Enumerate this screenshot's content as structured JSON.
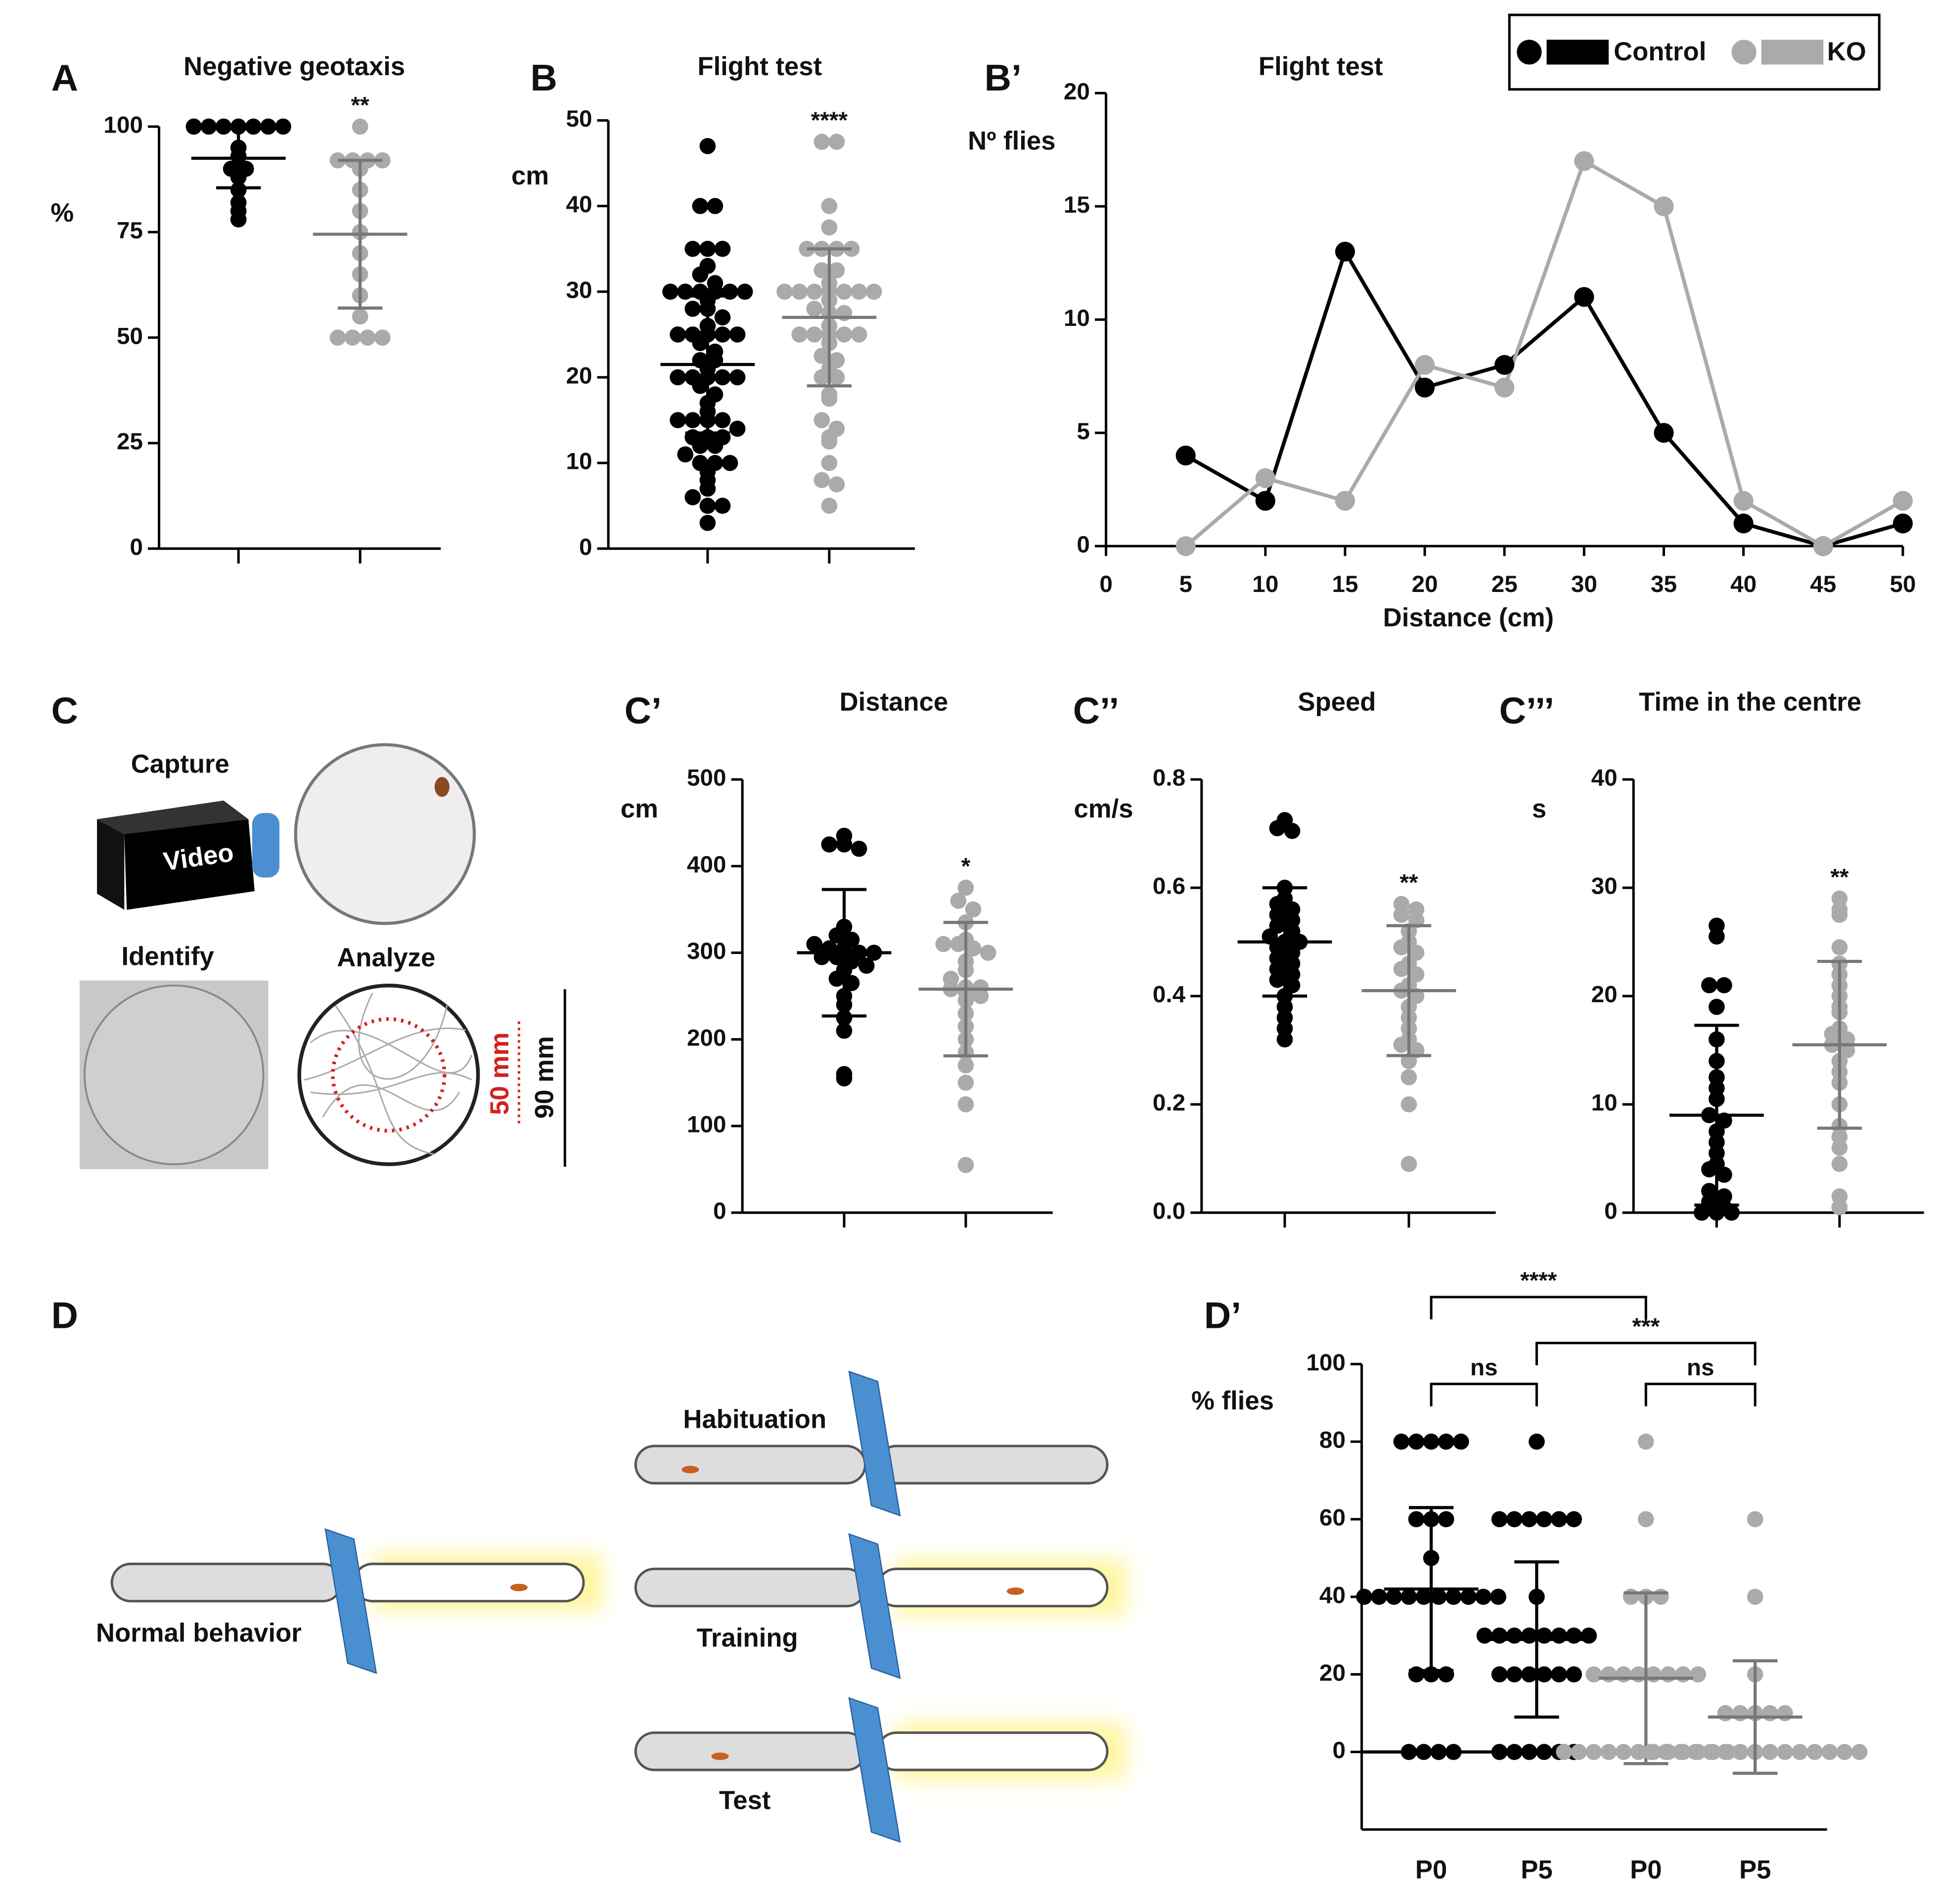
{
  "panel_labels": [
    "A",
    "B",
    "B’",
    "C",
    "C’",
    "C’’",
    "C’’’",
    "D",
    "D’"
  ],
  "diagram_c": {
    "capture": "Capture",
    "video": "Video",
    "identify": "Identify",
    "analyze": "Analyze",
    "inner": "50 mm",
    "outer": "90 mm"
  },
  "diagram_d": {
    "normal": "Normal behavior",
    "habituation": "Habituation",
    "training": "Training",
    "test": "Test"
  },
  "chart_data": [
    {
      "type": "dot",
      "title": "Negative geotaxis",
      "y_label": "%",
      "ylim": [
        0,
        100
      ],
      "yticks": [
        0,
        25,
        50,
        75,
        100
      ],
      "groups": [
        {
          "color": "#000000",
          "values": [
            100,
            100,
            100,
            100,
            100,
            100,
            100,
            95,
            93,
            90,
            90,
            88,
            85,
            82,
            80,
            78
          ],
          "mean": 92.5,
          "sd": 7
        },
        {
          "color": "#aaaaaa",
          "values": [
            100,
            92,
            92,
            92,
            92,
            90,
            85,
            80,
            75,
            70,
            65,
            60,
            55,
            50,
            50,
            50,
            50
          ],
          "mean": 74.5,
          "sd": 17.5,
          "label": "**"
        }
      ]
    },
    {
      "type": "dot",
      "title": "Flight test",
      "y_label": "cm",
      "ylim": [
        0,
        50
      ],
      "yticks": [
        0,
        10,
        20,
        30,
        40,
        50
      ],
      "groups": [
        {
          "color": "#000000",
          "values": [
            47,
            40,
            40,
            35,
            35,
            35,
            33,
            32,
            31,
            30,
            30,
            30,
            30,
            30,
            30,
            29,
            28,
            28,
            27,
            26,
            25,
            25,
            25,
            25,
            25,
            24,
            23,
            22,
            22,
            21,
            20,
            20,
            20,
            20,
            20,
            19,
            18,
            17,
            16,
            15,
            15,
            15,
            15,
            14,
            13,
            13,
            13,
            12,
            12,
            11,
            10,
            10,
            10,
            9,
            8,
            7,
            6,
            5,
            5,
            3
          ],
          "mean": 21.5,
          "sd": 8
        },
        {
          "color": "#aaaaaa",
          "values": [
            47.5,
            47.5,
            40,
            37.5,
            35,
            35,
            35,
            35,
            32.5,
            32.5,
            31,
            30,
            30,
            30,
            30,
            30,
            30,
            30,
            29,
            28,
            27.5,
            27.5,
            26,
            25,
            25,
            25,
            25,
            25,
            24,
            22.5,
            22,
            21,
            20,
            20,
            18,
            17.5,
            15,
            14,
            13,
            12.5,
            10,
            8,
            7.5,
            5
          ],
          "mean": 27,
          "sd": 8,
          "label": "****"
        }
      ]
    },
    {
      "type": "line",
      "title": "Flight test",
      "y_label": "Nº flies",
      "x_label": "Distance (cm)",
      "x": [
        5,
        10,
        15,
        20,
        25,
        30,
        35,
        40,
        45,
        50
      ],
      "xlim": [
        0,
        50
      ],
      "xticks": [
        0,
        5,
        10,
        15,
        20,
        25,
        30,
        35,
        40,
        45,
        50
      ],
      "ylim": [
        0,
        20
      ],
      "yticks": [
        0,
        5,
        10,
        15,
        20
      ],
      "legend": "upper right",
      "series": [
        {
          "name": "Control",
          "color": "#000000",
          "values": [
            4,
            2,
            13,
            7,
            8,
            11,
            5,
            1,
            0,
            1
          ]
        },
        {
          "name": "KO",
          "color": "#aaaaaa",
          "values": [
            0,
            3,
            2,
            8,
            7,
            17,
            15,
            2,
            0,
            2
          ]
        }
      ]
    },
    {
      "type": "dot",
      "title": "Distance",
      "y_label": "cm",
      "ylim": [
        0,
        500
      ],
      "yticks": [
        0,
        100,
        200,
        300,
        400,
        500
      ],
      "groups": [
        {
          "color": "#000000",
          "values": [
            435,
            425,
            425,
            420,
            330,
            320,
            315,
            310,
            305,
            305,
            300,
            300,
            295,
            295,
            290,
            285,
            280,
            270,
            265,
            250,
            240,
            225,
            210,
            160,
            155
          ],
          "mean": 300,
          "sd": 73
        },
        {
          "color": "#aaaaaa",
          "values": [
            375,
            360,
            350,
            335,
            315,
            310,
            310,
            305,
            300,
            290,
            280,
            270,
            260,
            260,
            258,
            255,
            250,
            245,
            230,
            215,
            200,
            185,
            170,
            150,
            125,
            55
          ],
          "mean": 258,
          "sd": 77,
          "label": "*"
        }
      ]
    },
    {
      "type": "dot",
      "title": "Speed",
      "y_label": "cm/s",
      "ylim": [
        0,
        0.8
      ],
      "yticks": [
        {
          "value": 0,
          "label": "0.0"
        },
        0.2,
        0.4,
        0.6,
        0.8
      ],
      "groups": [
        {
          "color": "#000000",
          "values": [
            0.725,
            0.71,
            0.705,
            0.6,
            0.58,
            0.57,
            0.56,
            0.55,
            0.54,
            0.53,
            0.52,
            0.51,
            0.5,
            0.5,
            0.49,
            0.48,
            0.47,
            0.46,
            0.45,
            0.44,
            0.43,
            0.42,
            0.4,
            0.38,
            0.36,
            0.34,
            0.32
          ],
          "mean": 0.5,
          "sd": 0.1
        },
        {
          "color": "#aaaaaa",
          "values": [
            0.57,
            0.56,
            0.55,
            0.54,
            0.52,
            0.5,
            0.49,
            0.48,
            0.46,
            0.45,
            0.44,
            0.42,
            0.41,
            0.4,
            0.38,
            0.36,
            0.34,
            0.32,
            0.31,
            0.3,
            0.28,
            0.25,
            0.2,
            0.09
          ],
          "mean": 0.41,
          "sd": 0.12,
          "label": "**"
        }
      ]
    },
    {
      "type": "dot",
      "title": "Time in the centre",
      "y_label": "s",
      "ylim": [
        0,
        40
      ],
      "yticks": [
        0,
        10,
        20,
        30,
        40
      ],
      "groups": [
        {
          "color": "#000000",
          "values": [
            26.5,
            25.5,
            21,
            21,
            19,
            16,
            14,
            12.5,
            11.5,
            10.5,
            9,
            8.5,
            7.5,
            6.5,
            5.5,
            4.5,
            4,
            3.5,
            2,
            1.5,
            1,
            0.5,
            0,
            0,
            0
          ],
          "mean": 9,
          "sd": 8.3
        },
        {
          "color": "#aaaaaa",
          "values": [
            29,
            28,
            27.5,
            24.5,
            23,
            22,
            21,
            20,
            19,
            18.5,
            17,
            16.5,
            16,
            15.5,
            15,
            14,
            13,
            12,
            10,
            8,
            7,
            6,
            4.5,
            1.5,
            0.5
          ],
          "mean": 15.5,
          "sd": 7.7,
          "label": "**"
        }
      ]
    },
    {
      "type": "dot",
      "y_label": "% flies",
      "categories": [
        "P0",
        "P5",
        "P0",
        "P5"
      ],
      "ylim": [
        -20,
        100
      ],
      "yticks": [
        0,
        20,
        40,
        60,
        80,
        100
      ],
      "annotations": [
        "****",
        "***",
        "ns",
        "ns"
      ],
      "groups": [
        {
          "color": "#000000",
          "values": [
            80,
            80,
            80,
            80,
            80,
            60,
            60,
            60,
            50,
            40,
            40,
            40,
            40,
            40,
            40,
            40,
            40,
            40,
            40,
            20,
            20,
            20,
            0,
            0,
            0,
            0
          ],
          "mean": 42,
          "sd": 21
        },
        {
          "color": "#000000",
          "values": [
            80,
            60,
            60,
            60,
            60,
            60,
            60,
            40,
            30,
            30,
            30,
            30,
            30,
            30,
            30,
            30,
            20,
            20,
            20,
            20,
            20,
            20,
            0,
            0,
            0,
            0,
            0,
            0
          ],
          "mean": 29,
          "sd": 20
        },
        {
          "color": "#aaaaaa",
          "values": [
            80,
            60,
            40,
            40,
            40,
            20,
            20,
            20,
            20,
            20,
            20,
            20,
            20,
            0,
            0,
            0,
            0,
            0,
            0,
            0,
            0,
            0,
            0,
            0,
            0
          ],
          "mean": 19,
          "sd": 22
        },
        {
          "color": "#aaaaaa",
          "values": [
            60,
            40,
            20,
            10,
            10,
            10,
            10,
            10,
            0,
            0,
            0,
            0,
            0,
            0,
            0,
            0,
            0,
            0,
            0,
            0,
            0,
            0,
            0
          ],
          "mean": 9,
          "sd": 14.5
        }
      ]
    }
  ]
}
